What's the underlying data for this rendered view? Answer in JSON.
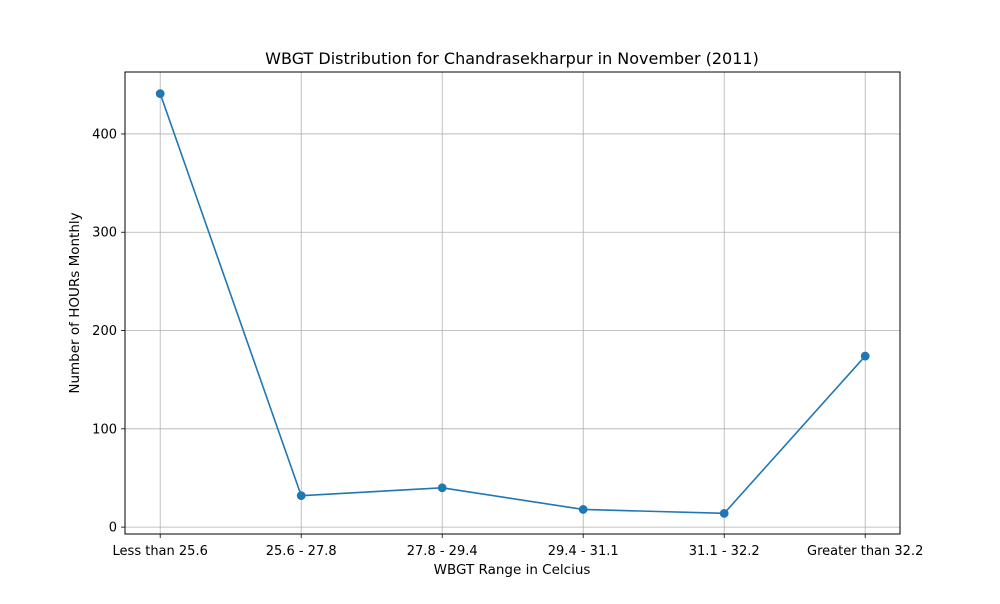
{
  "chart_data": {
    "type": "line",
    "title": "WBGT Distribution for Chandrasekharpur in November (2011)",
    "xlabel": "WBGT Range in Celcius",
    "ylabel": "Number of HOURs Monthly",
    "categories": [
      "Less than 25.6",
      "25.6 - 27.8",
      "27.8 - 29.4",
      "29.4 - 31.1",
      "31.1 - 32.2",
      "Greater than 32.2"
    ],
    "series": [
      {
        "values": [
          441,
          32,
          40,
          18,
          14,
          174
        ],
        "color": "#1f77b4",
        "marker": "circle"
      }
    ],
    "ylim": [
      -7,
      463
    ],
    "yticks": [
      0,
      100,
      200,
      300,
      400
    ],
    "grid": true,
    "legend": "none"
  }
}
